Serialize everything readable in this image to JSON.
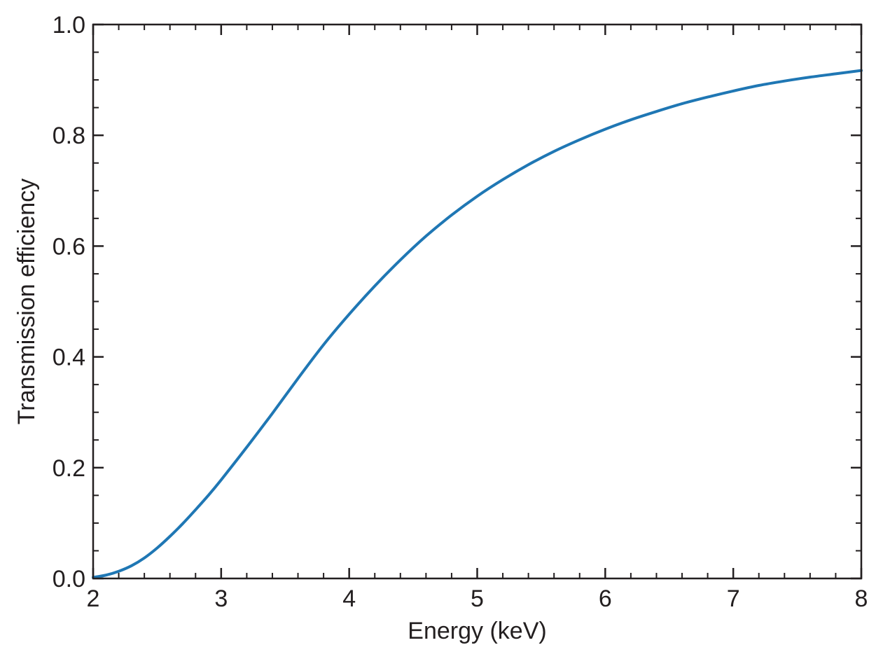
{
  "chart_data": {
    "type": "line",
    "title": "",
    "xlabel": "Energy (keV)",
    "ylabel": "Transmission efficiency",
    "xlim": [
      2,
      8
    ],
    "ylim": [
      0,
      1
    ],
    "x_ticks": [
      "2",
      "3",
      "4",
      "5",
      "6",
      "7",
      "8"
    ],
    "y_ticks": [
      "0.0",
      "0.2",
      "0.4",
      "0.6",
      "0.8",
      "1.0"
    ],
    "x_minor_step": 0.2,
    "y_minor_step": 0.05,
    "grid": false,
    "legend": "none",
    "series": [
      {
        "color": "#1f77b4",
        "x": [
          2.0,
          2.1,
          2.2,
          2.3,
          2.4,
          2.5,
          2.6,
          2.7,
          2.8,
          2.9,
          3.0,
          3.2,
          3.4,
          3.6,
          3.8,
          4.0,
          4.2,
          4.4,
          4.6,
          4.8,
          5.0,
          5.2,
          5.4,
          5.6,
          5.8,
          6.0,
          6.2,
          6.4,
          6.6,
          6.8,
          7.0,
          7.2,
          7.4,
          7.6,
          7.8,
          8.0
        ],
        "y": [
          0.002,
          0.006,
          0.013,
          0.023,
          0.037,
          0.055,
          0.076,
          0.099,
          0.124,
          0.15,
          0.178,
          0.237,
          0.298,
          0.361,
          0.422,
          0.477,
          0.528,
          0.575,
          0.618,
          0.656,
          0.69,
          0.72,
          0.747,
          0.771,
          0.792,
          0.811,
          0.828,
          0.843,
          0.857,
          0.869,
          0.88,
          0.89,
          0.898,
          0.905,
          0.911,
          0.917
        ]
      }
    ]
  }
}
